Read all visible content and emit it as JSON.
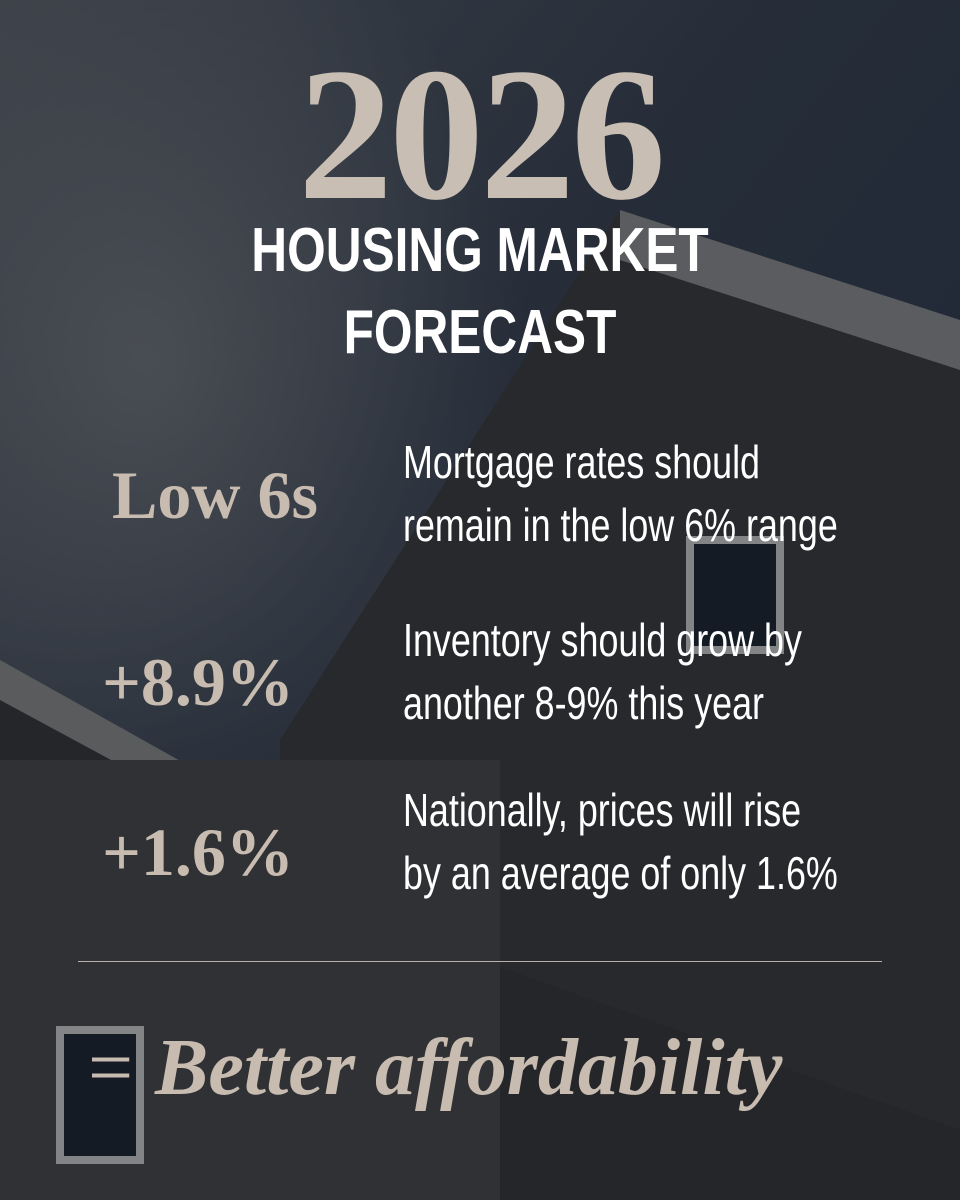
{
  "year": "2026",
  "title": [
    "HOUSING MARKET",
    "FORECAST"
  ],
  "stats": [
    {
      "figure": "Low 6s",
      "description": [
        "Mortgage rates should",
        "remain in the low 6% range"
      ]
    },
    {
      "figure": "+8.9%",
      "description": [
        "Inventory should grow by",
        "another 8-9% this year"
      ]
    },
    {
      "figure": "+1.6%",
      "description": [
        "Nationally, prices will rise",
        "by an average of only 1.6%"
      ]
    }
  ],
  "footer": {
    "symbol": "=",
    "text": "Better affordability"
  }
}
